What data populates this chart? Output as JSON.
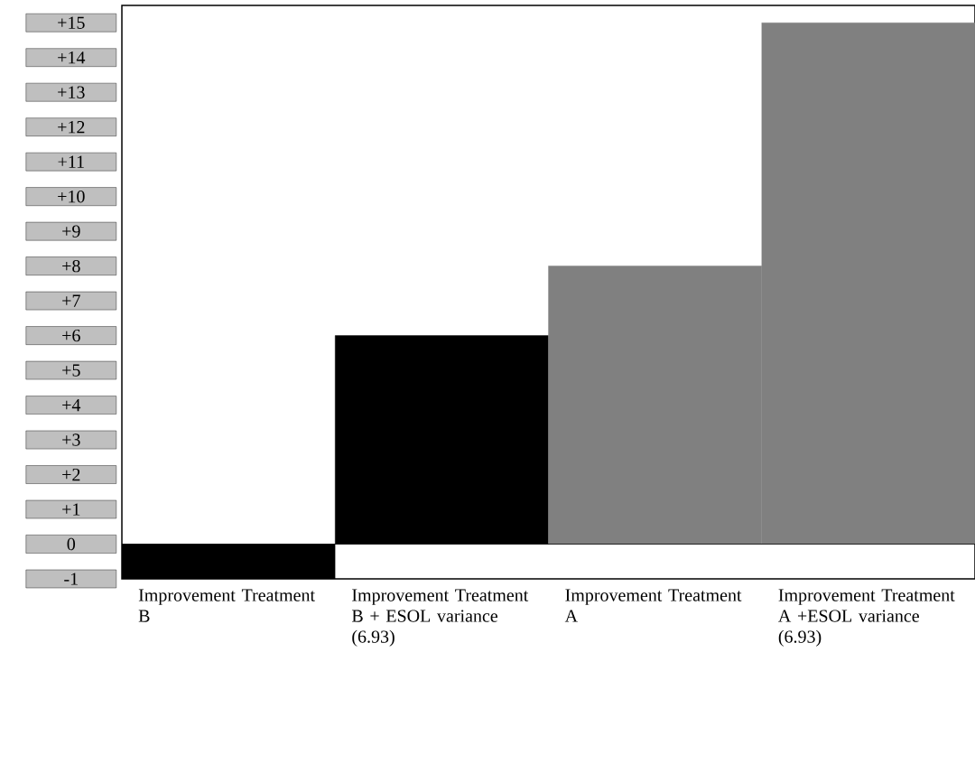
{
  "chart_data": {
    "type": "bar",
    "categories": [
      "Improvement Treatment B",
      "Improvement Treatment B + ESOL variance (6.93)",
      "Improvement Treatment A",
      "Improvement Treatment A +ESOL variance (6.93)"
    ],
    "values": [
      -1,
      6,
      8,
      15
    ],
    "colors": [
      "#000000",
      "#000000",
      "#808080",
      "#808080"
    ],
    "ylim": [
      -1,
      15
    ],
    "yticks": [
      {
        "value": 15,
        "label": "+15"
      },
      {
        "value": 14,
        "label": "+14"
      },
      {
        "value": 13,
        "label": "+13"
      },
      {
        "value": 12,
        "label": "+12"
      },
      {
        "value": 11,
        "label": "+11"
      },
      {
        "value": 10,
        "label": "+10"
      },
      {
        "value": 9,
        "label": "+9"
      },
      {
        "value": 8,
        "label": "+8"
      },
      {
        "value": 7,
        "label": "+7"
      },
      {
        "value": 6,
        "label": "+6"
      },
      {
        "value": 5,
        "label": "+5"
      },
      {
        "value": 4,
        "label": "+4"
      },
      {
        "value": 3,
        "label": "+3"
      },
      {
        "value": 2,
        "label": "+2"
      },
      {
        "value": 1,
        "label": "+1"
      },
      0,
      -1
    ]
  }
}
